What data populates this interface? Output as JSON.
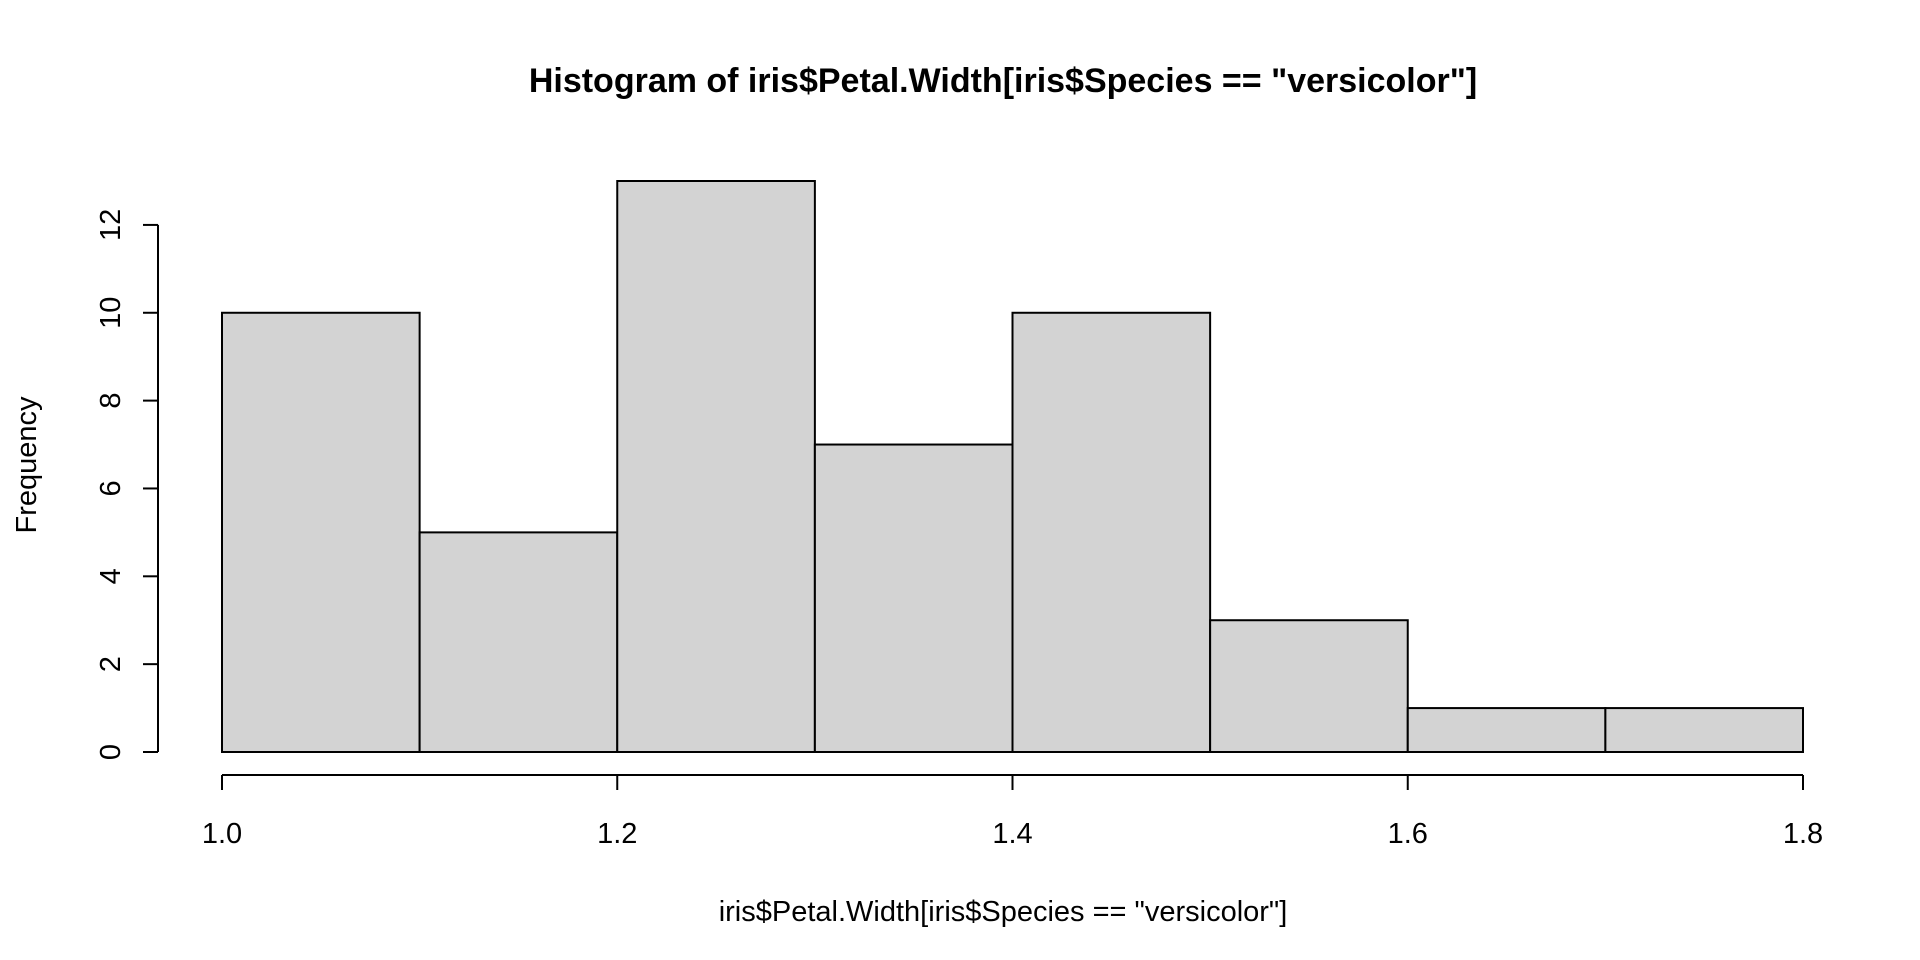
{
  "chart_data": {
    "type": "bar",
    "title": "Histogram of iris$Petal.Width[iris$Species == \"versicolor\"]",
    "xlabel": "iris$Petal.Width[iris$Species == \"versicolor\"]",
    "ylabel": "Frequency",
    "bins": [
      {
        "start": 1.0,
        "end": 1.1,
        "count": 10
      },
      {
        "start": 1.1,
        "end": 1.2,
        "count": 5
      },
      {
        "start": 1.2,
        "end": 1.3,
        "count": 13
      },
      {
        "start": 1.3,
        "end": 1.4,
        "count": 7
      },
      {
        "start": 1.4,
        "end": 1.5,
        "count": 10
      },
      {
        "start": 1.5,
        "end": 1.6,
        "count": 3
      },
      {
        "start": 1.6,
        "end": 1.7,
        "count": 1
      },
      {
        "start": 1.7,
        "end": 1.8,
        "count": 1
      }
    ],
    "xlim": [
      1.0,
      1.8
    ],
    "ylim": [
      0,
      13
    ],
    "x_ticks": [
      1.0,
      1.2,
      1.4,
      1.6,
      1.8
    ],
    "x_tick_labels": [
      "1.0",
      "1.2",
      "1.4",
      "1.6",
      "1.8"
    ],
    "y_ticks": [
      0,
      2,
      4,
      6,
      8,
      10,
      12
    ],
    "y_tick_labels": [
      "0",
      "2",
      "4",
      "6",
      "8",
      "10",
      "12"
    ],
    "grid": false,
    "colors": {
      "bar_fill": "#d3d3d3",
      "bar_stroke": "#000000"
    }
  }
}
